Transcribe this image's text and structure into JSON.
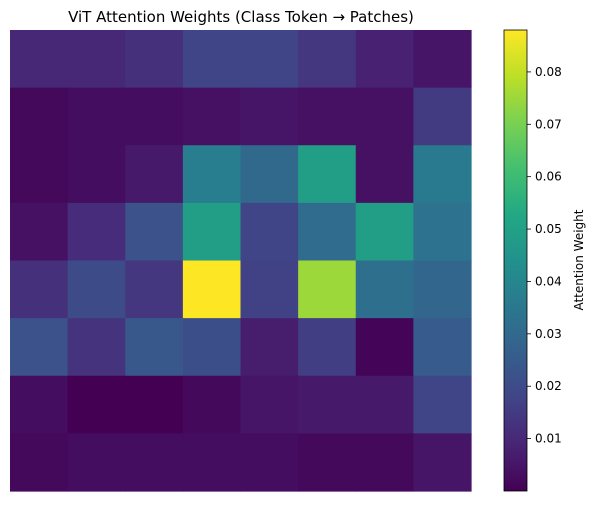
{
  "chart_data": {
    "type": "heatmap",
    "title": "ViT Attention Weights (Class Token → Patches)",
    "xlabel": "",
    "ylabel": "",
    "grid": false,
    "axes_visible": false,
    "rows": 8,
    "cols": 8,
    "values": [
      [
        0.01,
        0.01,
        0.012,
        0.018,
        0.018,
        0.014,
        0.008,
        0.005
      ],
      [
        0.002,
        0.003,
        0.003,
        0.004,
        0.005,
        0.004,
        0.004,
        0.015
      ],
      [
        0.002,
        0.003,
        0.006,
        0.037,
        0.03,
        0.049,
        0.004,
        0.036
      ],
      [
        0.004,
        0.011,
        0.022,
        0.049,
        0.018,
        0.031,
        0.049,
        0.033
      ],
      [
        0.012,
        0.02,
        0.014,
        0.088,
        0.017,
        0.075,
        0.032,
        0.029
      ],
      [
        0.022,
        0.013,
        0.024,
        0.021,
        0.007,
        0.016,
        0.001,
        0.025
      ],
      [
        0.003,
        0.0,
        0.0,
        0.002,
        0.005,
        0.006,
        0.006,
        0.018
      ],
      [
        0.002,
        0.003,
        0.003,
        0.003,
        0.003,
        0.002,
        0.002,
        0.005
      ]
    ],
    "colormap": "viridis",
    "colorbar": {
      "label": "Attention Weight",
      "range": [
        0.0,
        0.088
      ],
      "ticks": [
        0.01,
        0.02,
        0.03,
        0.04,
        0.05,
        0.06,
        0.07,
        0.08
      ],
      "tick_labels": [
        "0.01",
        "0.02",
        "0.03",
        "0.04",
        "0.05",
        "0.06",
        "0.07",
        "0.08"
      ]
    }
  }
}
